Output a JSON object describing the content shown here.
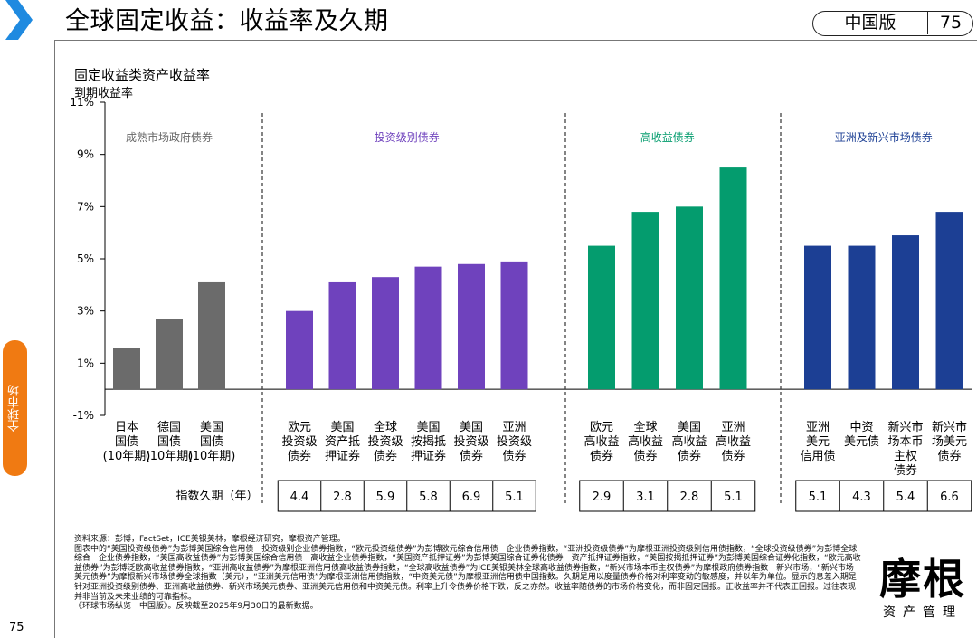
{
  "header": {
    "title": "全球固定收益：收益率及久期",
    "edition": "中国版",
    "page_badge": "75"
  },
  "side_tab": "全球市场",
  "page_number": "75",
  "chart_title": "固定收益类资产收益率",
  "chart_subtitle": "到期收益率",
  "chart_data": {
    "type": "bar",
    "title": "固定收益类资产收益率",
    "ylabel": "到期收益率",
    "ylim": [
      -1,
      11
    ],
    "yticks": [
      "-1%",
      "1%",
      "3%",
      "5%",
      "7%",
      "9%",
      "11%"
    ],
    "ytick_values": [
      -1,
      1,
      3,
      5,
      7,
      9,
      11
    ],
    "duration_label": "指数久期（年）",
    "groups": [
      {
        "name": "成熟市场政府债券",
        "color": "#6b6b6b",
        "label_color": "#666666",
        "categories": [
          [
            "日本",
            "国债",
            "(10年期)"
          ],
          [
            "德国",
            "国债",
            "(10年期)"
          ],
          [
            "美国",
            "国债",
            "(10年期)"
          ]
        ],
        "values": [
          1.6,
          2.7,
          4.1
        ],
        "durations": []
      },
      {
        "name": "投资级别债券",
        "color": "#6f42bd",
        "label_color": "#6f42bd",
        "categories": [
          [
            "欧元",
            "投资级",
            "债券"
          ],
          [
            "美国",
            "资产抵",
            "押证券"
          ],
          [
            "全球",
            "投资级",
            "债券"
          ],
          [
            "美国",
            "按揭抵",
            "押证券"
          ],
          [
            "美国",
            "投资级",
            "债券"
          ],
          [
            "亚洲",
            "投资级",
            "债券"
          ]
        ],
        "values": [
          3.0,
          4.1,
          4.3,
          4.7,
          4.8,
          4.9
        ],
        "durations": [
          "4.4",
          "2.8",
          "5.9",
          "5.8",
          "6.9",
          "5.1"
        ]
      },
      {
        "name": "高收益债券",
        "color": "#049c6e",
        "label_color": "#049c6e",
        "categories": [
          [
            "欧元",
            "高收益",
            "债券"
          ],
          [
            "全球",
            "高收益",
            "债券"
          ],
          [
            "美国",
            "高收益",
            "债券"
          ],
          [
            "亚洲",
            "高收益",
            "债券"
          ]
        ],
        "values": [
          5.5,
          6.8,
          7.0,
          8.5
        ],
        "durations": [
          "2.9",
          "3.1",
          "2.8",
          "5.1"
        ]
      },
      {
        "name": "亚洲及新兴市场债券",
        "color": "#1c3f94",
        "label_color": "#1c3f94",
        "categories": [
          [
            "亚洲",
            "美元",
            "信用债"
          ],
          [
            "中资",
            "美元债"
          ],
          [
            "新兴市",
            "场本币",
            "主权",
            "债券"
          ],
          [
            "新兴市",
            "场美元",
            "债券"
          ]
        ],
        "values": [
          5.5,
          5.5,
          5.9,
          6.8
        ],
        "durations": [
          "5.1",
          "4.3",
          "5.4",
          "6.6"
        ]
      }
    ]
  },
  "source_notes": [
    "资料来源：彭博，FactSet，ICE美银美林，摩根经济研究，摩根资产管理。",
    "图表中的“美国投资级债券”为彭博美国综合信用债－投资级别企业债券指数，“欧元投资级债券”为彭博欧元综合信用债－企业债券指数，“亚洲投资级债券”为摩根亚洲投资级别信用债指数，“全球投资级债券”为彭博全球综合－企业债券指数，“美国高收益债券”为彭博美国综合信用债－高收益企业债券指数，“美国资产抵押证券”为彭博美国综合证券化债券－资产抵押证券指数，“美国按揭抵押证券”为彭博美国综合证券化指数，“欧元高收益债券”为彭博泛欧高收益债券指数，“亚洲高收益债券”为摩根亚洲信用债高收益债券指数，“全球高收益债券”为ICE美银美林全球高收益债券指数，“新兴市场本币主权债券”为摩根政府债券指数－新兴市场，“新兴市场美元债券”为摩根新兴市场债券全球指数（美元），“亚洲美元信用债”为摩根亚洲信用债指数，“中资美元债”为摩根亚洲信用债中国指数。久期是用以度量债券价格对利率变动的敏感度，并以年为单位。显示的息差入期是针对亚洲投资级别债券、亚洲高收益债券、新兴市场美元债券、亚洲美元信用债和中资美元债。利率上升令债券价格下跌，反之亦然。收益率随债券的市场价格变化，而非固定回报。正收益率并不代表正回报。过往表现并非当前及未来业绩的可靠指标。",
    "《环球市场纵览－中国版》。反映截至2025年9月30日的最新数据。"
  ],
  "logo": {
    "main": "摩根",
    "sub": "资产管理"
  },
  "colors": {
    "accent_blue": "#1f8ae0",
    "side_tab": "#f07a12"
  }
}
